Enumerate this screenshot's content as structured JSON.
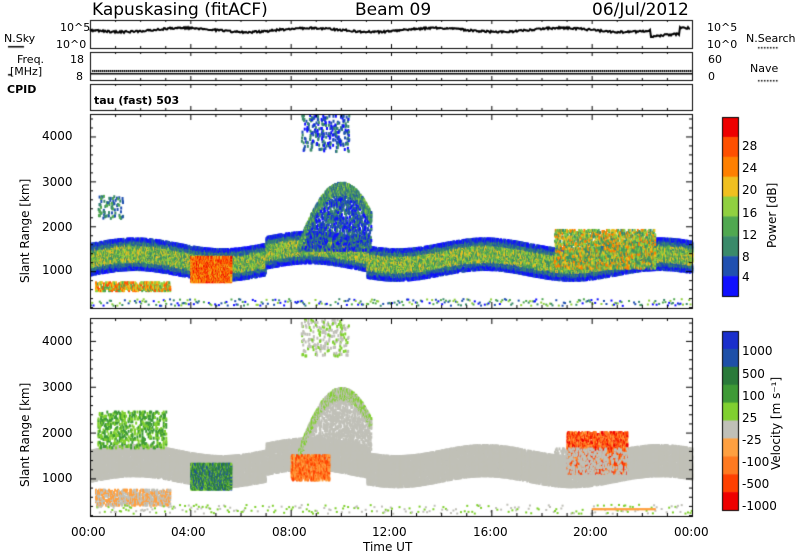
{
  "header": {
    "station": "Kapuskasing (fitACF)",
    "beam": "Beam 09",
    "date": "06/Jul/2012"
  },
  "sky_panel": {
    "left_label": "N.Sky",
    "right_label": "N.Search",
    "left_ticks": [
      "10^5",
      "10^0"
    ],
    "right_ticks": [
      "10^5",
      "10^0"
    ]
  },
  "freq_panel": {
    "label": "Freq.",
    "unit": "[MHz]",
    "left_ticks": [
      "18",
      "8"
    ],
    "right_ticks": [
      "60",
      "0"
    ],
    "right_label": "Nave"
  },
  "cpid_panel": {
    "label": "CPID",
    "mode": "tau (fast) 503"
  },
  "colors": {
    "power_scale": [
      "#1010ff",
      "#2050b0",
      "#3a8a6a",
      "#50a850",
      "#90d040",
      "#f0c020",
      "#ff8000",
      "#ff5000",
      "#ee0000"
    ],
    "velocity_scale": [
      "#1a2fcc",
      "#1e50a8",
      "#2a7a3a",
      "#3e9a36",
      "#80d030",
      "#c0c0b8",
      "#ffa040",
      "#ff7a20",
      "#ff4000",
      "#ee0000"
    ],
    "ground_scatter": "#c0c0b8"
  },
  "chart_data": [
    {
      "type": "heatmap",
      "name_key": "power",
      "xlabel": "",
      "ylabel": "Slant Range [km]",
      "y_ticks": [
        "1000",
        "2000",
        "3000",
        "4000"
      ],
      "x_range_hours": [
        0,
        24
      ],
      "y_range_km": [
        180,
        4500
      ],
      "colorbar": {
        "label": "Power [dB]",
        "ticks": [
          "4",
          "8",
          "12",
          "16",
          "20",
          "24",
          "28"
        ],
        "range": [
          0,
          30
        ]
      },
      "features": [
        {
          "feature": "main band",
          "time_hours": [
            0,
            24
          ],
          "range_km": [
            1000,
            1600
          ],
          "power_db": [
            8,
            20
          ]
        },
        {
          "feature": "enhanced patch",
          "time_hours": [
            4.0,
            5.5
          ],
          "range_km": [
            800,
            1300
          ],
          "power_db": [
            24,
            30
          ]
        },
        {
          "feature": "rising arc",
          "time_hours": [
            7.0,
            11.0
          ],
          "range_km": [
            1500,
            3000
          ],
          "power_db": [
            8,
            18
          ]
        },
        {
          "feature": "far range cluster",
          "time_hours": [
            8.5,
            10.2
          ],
          "range_km": [
            3700,
            4500
          ],
          "power_db": [
            4,
            10
          ]
        }
      ]
    },
    {
      "type": "heatmap",
      "name_key": "velocity",
      "xlabel": "Time UT",
      "ylabel": "Slant Range [km]",
      "y_ticks": [
        "1000",
        "2000",
        "3000",
        "4000"
      ],
      "x_ticks": [
        "00:00",
        "04:00",
        "08:00",
        "12:00",
        "16:00",
        "20:00",
        "00:00"
      ],
      "x_range_hours": [
        0,
        24
      ],
      "y_range_km": [
        180,
        4500
      ],
      "colorbar": {
        "label": "Velocity [m s⁻¹]",
        "ticks": [
          "1000",
          "500",
          "100",
          "25",
          "-25",
          "-100",
          "-500",
          "-1000"
        ]
      },
      "features": [
        {
          "feature": "ground scatter band",
          "time_hours": [
            0,
            24
          ],
          "range_km": [
            1000,
            1600
          ],
          "velocity_ms": [
            -25,
            25
          ]
        },
        {
          "feature": "toward patch",
          "time_hours": [
            4.0,
            5.5
          ],
          "range_km": [
            800,
            1300
          ],
          "velocity_ms": [
            100,
            500
          ]
        },
        {
          "feature": "away patch",
          "time_hours": [
            19.0,
            21.2
          ],
          "range_km": [
            1200,
            2000
          ],
          "velocity_ms": [
            -500,
            -100
          ]
        },
        {
          "feature": "away patch",
          "time_hours": [
            8.0,
            9.5
          ],
          "range_km": [
            1000,
            1500
          ],
          "velocity_ms": [
            -500,
            -100
          ]
        }
      ]
    }
  ]
}
